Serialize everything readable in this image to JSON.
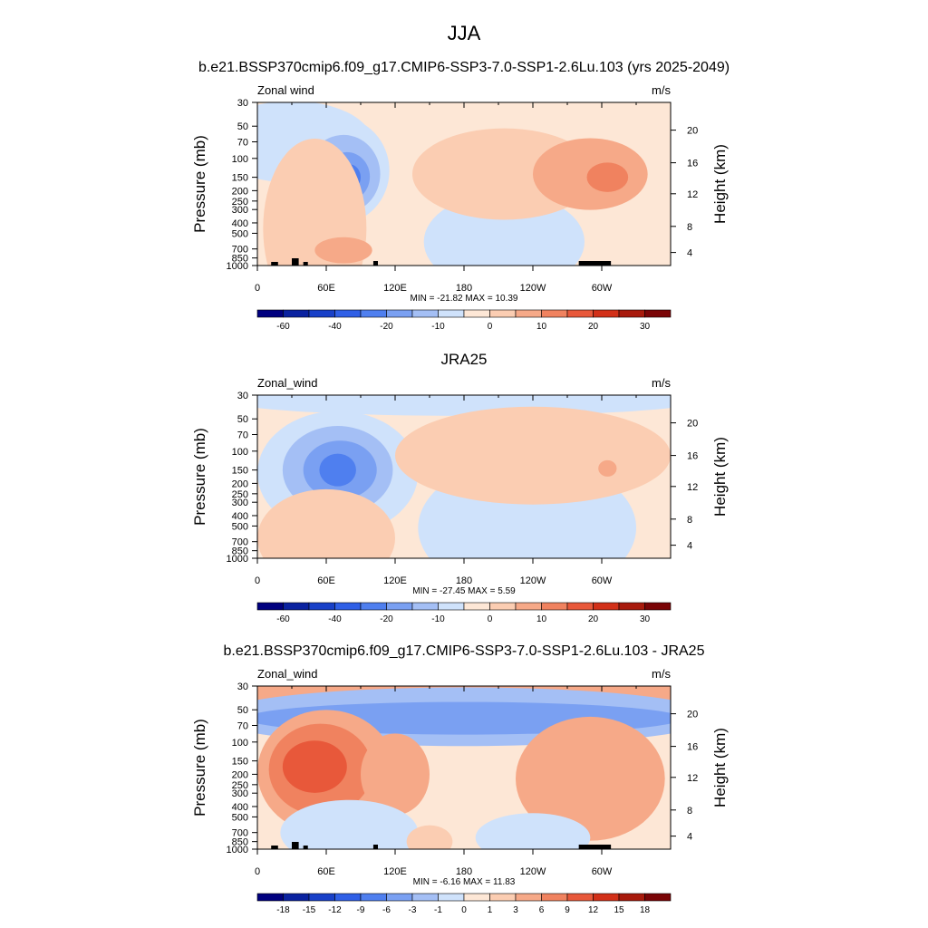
{
  "main_title": "JJA",
  "colors": {
    "full": [
      "#00007f",
      "#0a22a0",
      "#1840c8",
      "#2f5fe6",
      "#4f7fef",
      "#7aa0f2",
      "#a4bff5",
      "#cfe2fb",
      "#fde7d6",
      "#fbcdb2",
      "#f6a988",
      "#f0825f",
      "#e8583a",
      "#d23018",
      "#a81a0c",
      "#7a0406"
    ],
    "diff": [
      "#00007f",
      "#0a22a0",
      "#1840c8",
      "#2f5fe6",
      "#4f7fef",
      "#7aa0f2",
      "#a4bff5",
      "#cfe2fb",
      "#fde7d6",
      "#fbcdb2",
      "#f6a988",
      "#f0825f",
      "#e8583a",
      "#d23018",
      "#a81a0c",
      "#7a0406"
    ]
  },
  "chart_data": [
    {
      "type": "heatmap",
      "title": "b.e21.BSSP370cmip6.f09_g17.CMIP6-SSP3-7.0-SSP1-2.6Lu.103 (yrs 2025-2049)",
      "left_label": "Zonal wind",
      "right_label": "m/s",
      "ylabel": "Pressure (mb)",
      "ylabel_right": "Height (km)",
      "x_ticks": [
        "0",
        "60E",
        "120E",
        "180",
        "120W",
        "60W"
      ],
      "y_ticks": [
        "30",
        "50",
        "70",
        "100",
        "150",
        "200",
        "250",
        "300",
        "400",
        "500",
        "700",
        "850",
        "1000"
      ],
      "y_ticks_right": [
        "20",
        "16",
        "12",
        "8",
        "4"
      ],
      "stats": "MIN = -21.82  MAX =  10.39",
      "colorbar_labels": [
        "-60",
        "-40",
        "-20",
        "-10",
        "0",
        "10",
        "20",
        "30"
      ],
      "background_level": 8,
      "regions": [
        {
          "lon": 30,
          "p": 70,
          "rx": 70,
          "ry": 0.25,
          "level": 7
        },
        {
          "lon": 70,
          "p": 130,
          "rx": 45,
          "ry": 0.33,
          "level": 7
        },
        {
          "lon": 75,
          "p": 140,
          "rx": 32,
          "ry": 0.24,
          "level": 6
        },
        {
          "lon": 78,
          "p": 148,
          "rx": 20,
          "ry": 0.15,
          "level": 5
        },
        {
          "lon": 80,
          "p": 150,
          "rx": 10,
          "ry": 0.08,
          "level": 4
        },
        {
          "lon": 215,
          "p": 600,
          "rx": 70,
          "ry": 0.3,
          "level": 7
        },
        {
          "lon": 215,
          "p": 140,
          "rx": 80,
          "ry": 0.28,
          "level": 9
        },
        {
          "lon": 290,
          "p": 140,
          "rx": 50,
          "ry": 0.22,
          "level": 10
        },
        {
          "lon": 305,
          "p": 150,
          "rx": 18,
          "ry": 0.09,
          "level": 11
        },
        {
          "lon": 50,
          "p": 450,
          "rx": 45,
          "ry": 0.55,
          "level": 9
        },
        {
          "lon": 75,
          "p": 720,
          "rx": 25,
          "ry": 0.08,
          "level": 10
        }
      ]
    },
    {
      "type": "heatmap",
      "title": "JRA25",
      "left_label": "Zonal_wind",
      "right_label": "m/s",
      "ylabel": "Pressure (mb)",
      "ylabel_right": "Height (km)",
      "x_ticks": [
        "0",
        "60E",
        "120E",
        "180",
        "120W",
        "60W"
      ],
      "y_ticks": [
        "30",
        "50",
        "70",
        "100",
        "150",
        "200",
        "250",
        "300",
        "400",
        "500",
        "700",
        "850",
        "1000"
      ],
      "y_ticks_right": [
        "20",
        "16",
        "12",
        "8",
        "4"
      ],
      "stats": "MIN = -27.45  MAX =   5.59",
      "colorbar_labels": [
        "-60",
        "-40",
        "-20",
        "-10",
        "0",
        "10",
        "20",
        "30"
      ],
      "background_level": 8,
      "regions": [
        {
          "lon": 180,
          "p": 33,
          "rx": 210,
          "ry": 0.1,
          "level": 7
        },
        {
          "lon": 70,
          "p": 160,
          "rx": 70,
          "ry": 0.38,
          "level": 7
        },
        {
          "lon": 70,
          "p": 150,
          "rx": 48,
          "ry": 0.27,
          "level": 6
        },
        {
          "lon": 72,
          "p": 150,
          "rx": 32,
          "ry": 0.18,
          "level": 5
        },
        {
          "lon": 70,
          "p": 150,
          "rx": 16,
          "ry": 0.1,
          "level": 4
        },
        {
          "lon": 235,
          "p": 520,
          "rx": 95,
          "ry": 0.42,
          "level": 7
        },
        {
          "lon": 240,
          "p": 110,
          "rx": 120,
          "ry": 0.3,
          "level": 9
        },
        {
          "lon": 305,
          "p": 145,
          "rx": 8,
          "ry": 0.05,
          "level": 10
        },
        {
          "lon": 60,
          "p": 650,
          "rx": 60,
          "ry": 0.3,
          "level": 9
        }
      ]
    },
    {
      "type": "heatmap",
      "title": "b.e21.BSSP370cmip6.f09_g17.CMIP6-SSP3-7.0-SSP1-2.6Lu.103 - JRA25",
      "left_label": "Zonal_wind",
      "right_label": "m/s",
      "ylabel": "Pressure (mb)",
      "ylabel_right": "Height (km)",
      "x_ticks": [
        "0",
        "60E",
        "120E",
        "180",
        "120W",
        "60W"
      ],
      "y_ticks": [
        "30",
        "50",
        "70",
        "100",
        "150",
        "200",
        "250",
        "300",
        "400",
        "500",
        "700",
        "850",
        "1000"
      ],
      "y_ticks_right": [
        "20",
        "16",
        "12",
        "8",
        "4"
      ],
      "stats": "MIN =  -6.16  MAX =  11.83",
      "colorbar_labels": [
        "-18",
        "-15",
        "-12",
        "-9",
        "-6",
        "-3",
        "-1",
        "0",
        "1",
        "3",
        "6",
        "9",
        "12",
        "15",
        "18"
      ],
      "background_level": 8,
      "regions": [
        {
          "lon": 180,
          "p": 34,
          "rx": 220,
          "ry": 0.1,
          "level": 10
        },
        {
          "lon": 180,
          "p": 58,
          "rx": 220,
          "ry": 0.18,
          "level": 6
        },
        {
          "lon": 180,
          "p": 60,
          "rx": 190,
          "ry": 0.1,
          "level": 5
        },
        {
          "lon": 60,
          "p": 190,
          "rx": 60,
          "ry": 0.38,
          "level": 10
        },
        {
          "lon": 55,
          "p": 180,
          "rx": 45,
          "ry": 0.28,
          "level": 11
        },
        {
          "lon": 50,
          "p": 170,
          "rx": 28,
          "ry": 0.16,
          "level": 12
        },
        {
          "lon": 120,
          "p": 200,
          "rx": 30,
          "ry": 0.25,
          "level": 10
        },
        {
          "lon": 290,
          "p": 220,
          "rx": 65,
          "ry": 0.38,
          "level": 10
        },
        {
          "lon": 80,
          "p": 700,
          "rx": 60,
          "ry": 0.2,
          "level": 7
        },
        {
          "lon": 240,
          "p": 780,
          "rx": 50,
          "ry": 0.15,
          "level": 7
        },
        {
          "lon": 150,
          "p": 850,
          "rx": 20,
          "ry": 0.1,
          "level": 9
        }
      ]
    }
  ]
}
